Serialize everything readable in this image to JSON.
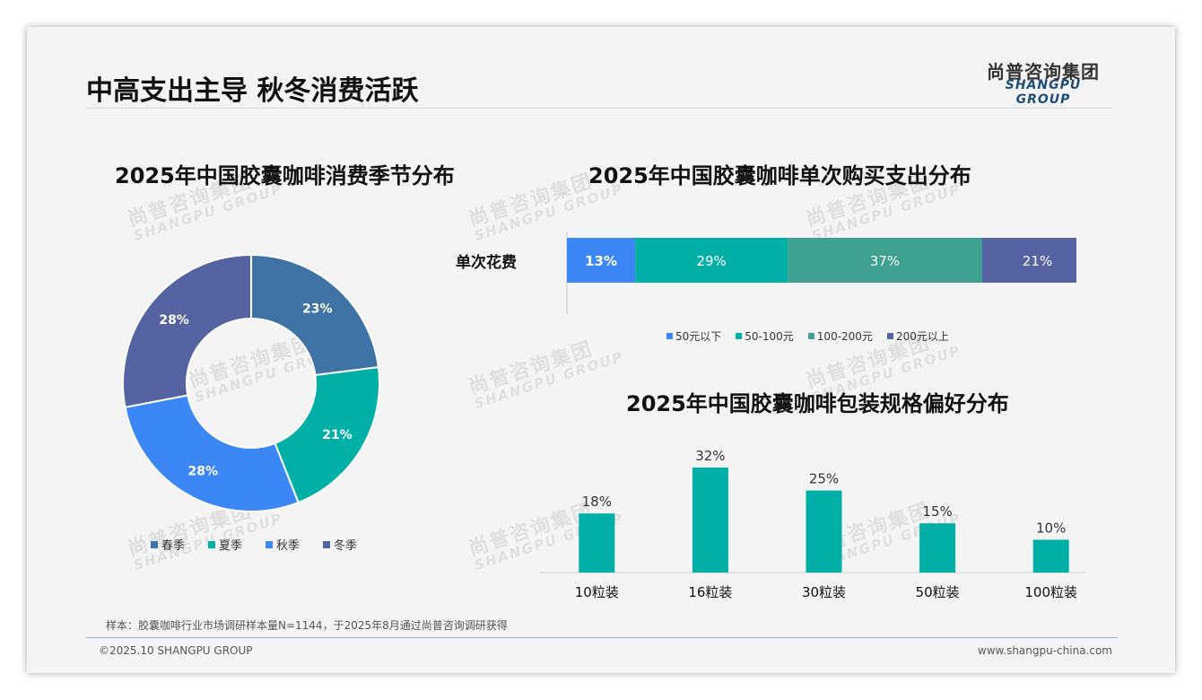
{
  "header": {
    "title": "中高支出主导 秋冬消费活跃",
    "logo_cn": "尚普咨询集团",
    "logo_en": "SHANGPU GROUP"
  },
  "watermark": {
    "cn": "尚普咨询集团",
    "en": "SHANGPU GROUP"
  },
  "chart_data": [
    {
      "type": "pie",
      "variant": "donut",
      "title": "2025年中国胶囊咖啡消费季节分布",
      "categories": [
        "春季",
        "夏季",
        "秋季",
        "冬季"
      ],
      "values": [
        23,
        21,
        28,
        28
      ],
      "labels": [
        "23%",
        "21%",
        "28%",
        "28%"
      ],
      "colors": [
        "#3f72a5",
        "#00b0a6",
        "#3a87f5",
        "#5563a3"
      ],
      "legend_position": "bottom"
    },
    {
      "type": "bar",
      "orientation": "horizontal",
      "stacked": true,
      "title": "2025年中国胶囊咖啡单次购买支出分布",
      "categories": [
        "单次花费"
      ],
      "series": [
        {
          "name": "50元以下",
          "values": [
            13
          ],
          "label": "13%",
          "color": "#3a87f5"
        },
        {
          "name": "50-100元",
          "values": [
            29
          ],
          "label": "29%",
          "color": "#00b0a6"
        },
        {
          "name": "100-200元",
          "values": [
            37
          ],
          "label": "37%",
          "color": "#3ea08f"
        },
        {
          "name": "200元以上",
          "values": [
            21
          ],
          "label": "21%",
          "color": "#5563a3"
        }
      ],
      "legend_position": "bottom"
    },
    {
      "type": "bar",
      "title": "2025年中国胶囊咖啡包装规格偏好分布",
      "categories": [
        "10粒装",
        "16粒装",
        "30粒装",
        "50粒装",
        "100粒装"
      ],
      "values": [
        18,
        32,
        25,
        15,
        10
      ],
      "labels": [
        "18%",
        "32%",
        "25%",
        "15%",
        "10%"
      ],
      "color": "#00b0a6",
      "ylim": [
        0,
        35
      ]
    }
  ],
  "footer": {
    "note": "样本：胶囊咖啡行业市场调研样本量N=1144，于2025年8月通过尚普咨询调研获得",
    "copyright": "©2025.10 SHANGPU GROUP",
    "website": "www.shangpu-china.com"
  }
}
